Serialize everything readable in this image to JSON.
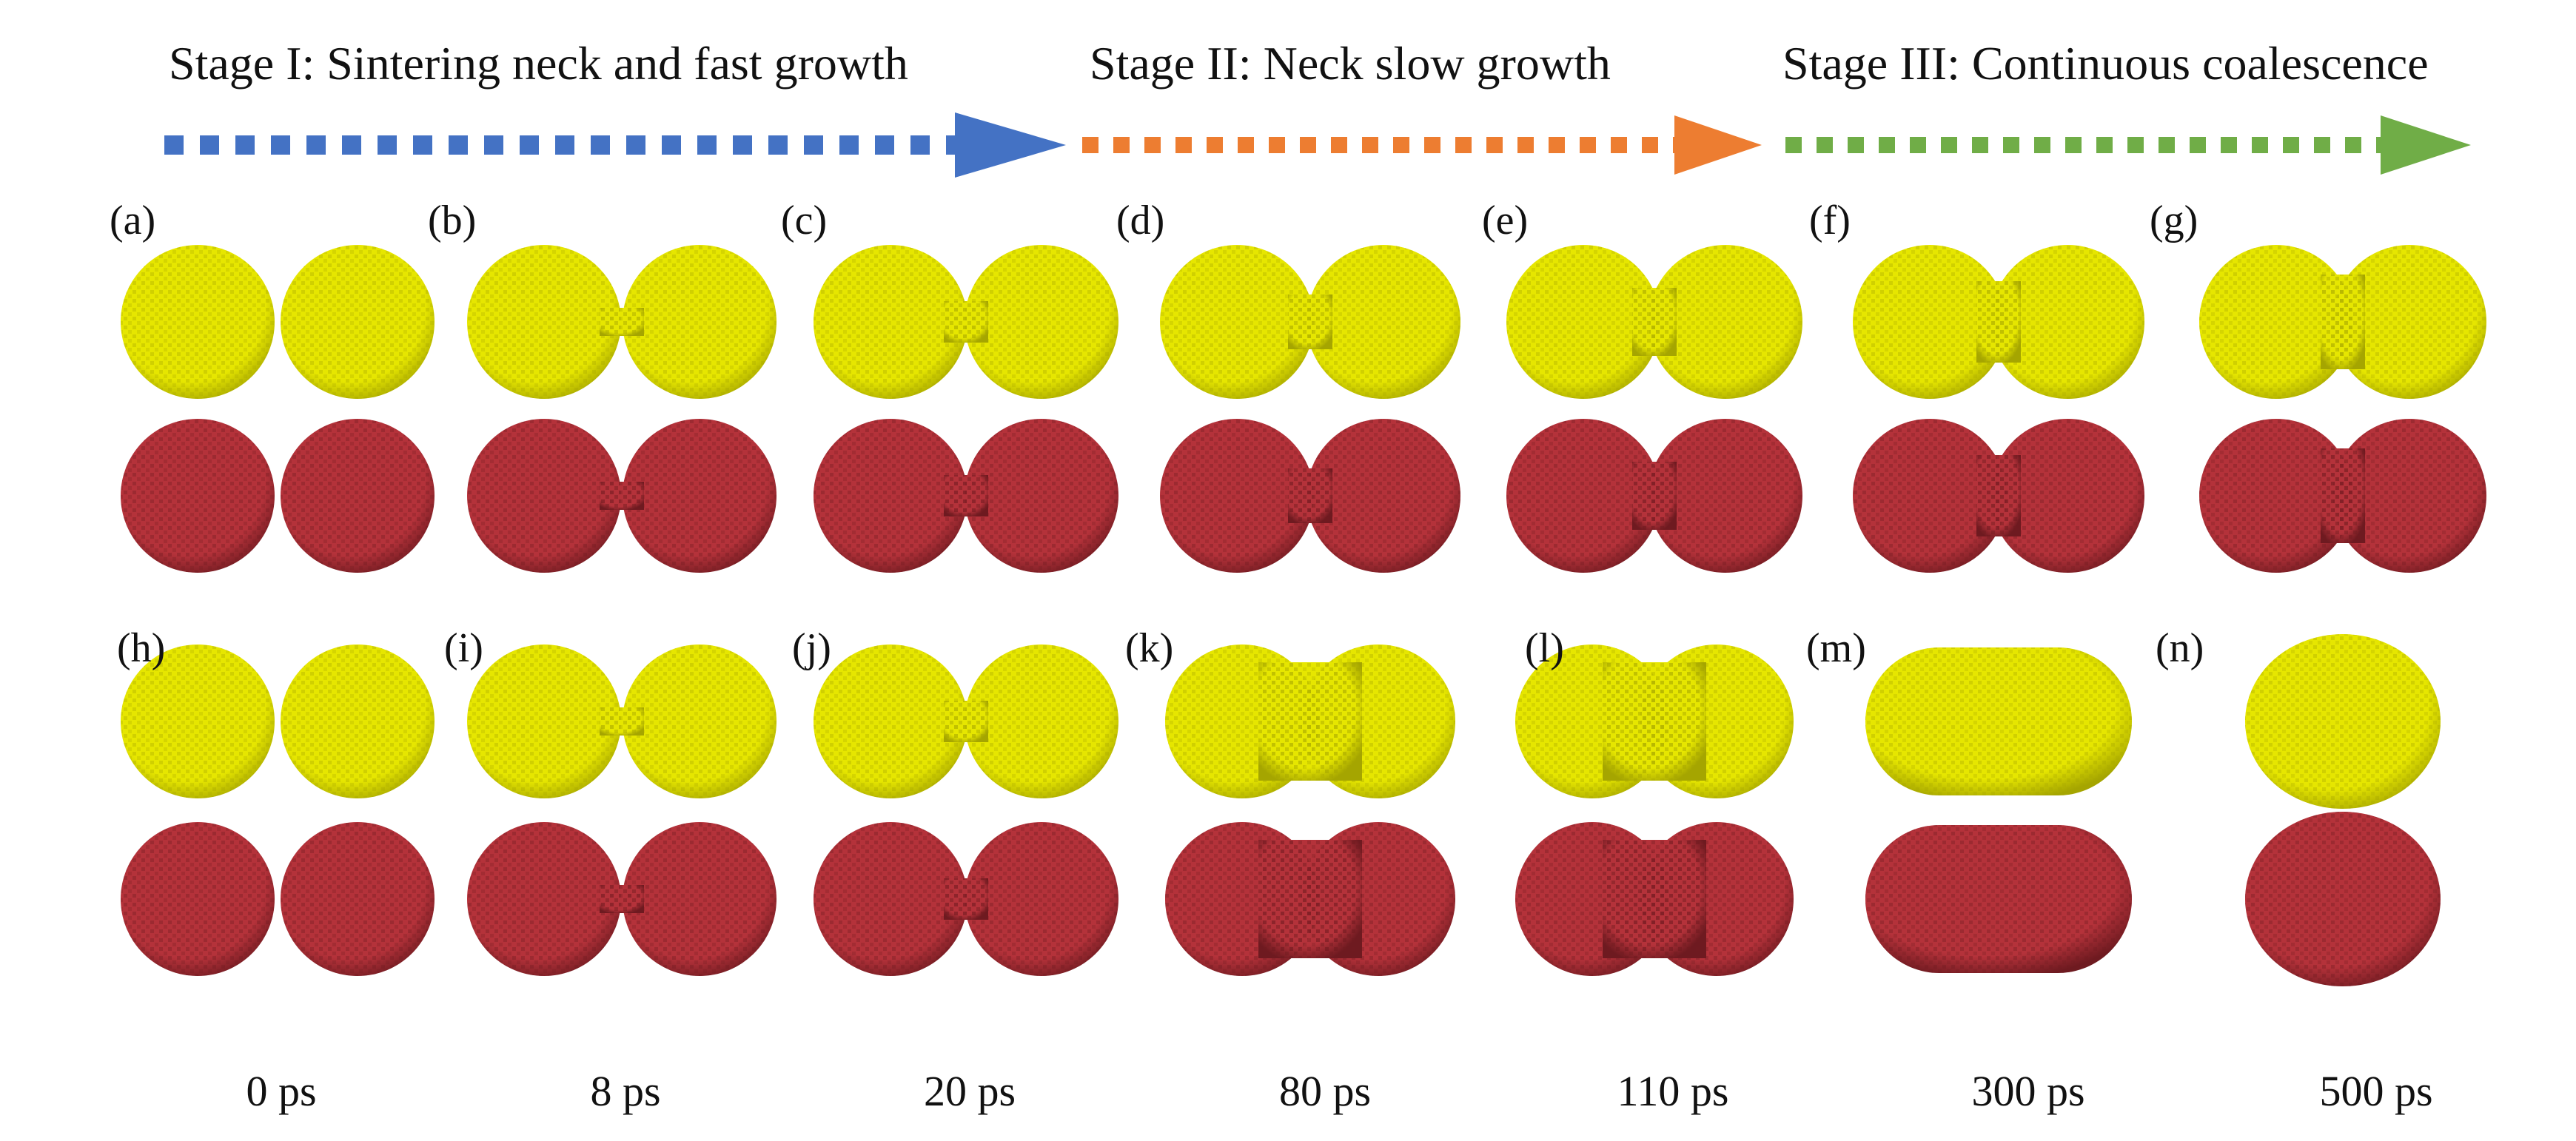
{
  "stages": [
    {
      "title": "Stage I: Sintering neck and fast growth",
      "color": "#4472c4"
    },
    {
      "title": "Stage II: Neck slow growth",
      "color": "#ed7d31"
    },
    {
      "title": "Stage III: Continuous coalescence",
      "color": "#70ad47"
    }
  ],
  "colors": {
    "yellow_particle": "#e6e600",
    "yellow_dark": "#a5a500",
    "red_particle": "#b4323a",
    "red_dark": "#6e1a20"
  },
  "panels_top": [
    {
      "label": "(a)"
    },
    {
      "label": "(b)"
    },
    {
      "label": "(c)"
    },
    {
      "label": "(d)"
    },
    {
      "label": "(e)"
    },
    {
      "label": "(f)"
    },
    {
      "label": "(g)"
    }
  ],
  "panels_bottom": [
    {
      "label": "(h)"
    },
    {
      "label": "(i)"
    },
    {
      "label": "(j)"
    },
    {
      "label": "(k)"
    },
    {
      "label": "(l)"
    },
    {
      "label": "(m)"
    },
    {
      "label": "(n)"
    }
  ],
  "times": [
    "0 ps",
    "8 ps",
    "20 ps",
    "80 ps",
    "110 ps",
    "300 ps",
    "500 ps"
  ]
}
